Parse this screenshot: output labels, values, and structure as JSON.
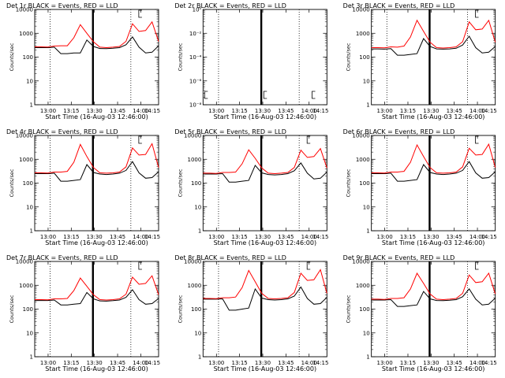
{
  "chart_data": [
    {
      "type": "line",
      "title": "Det 1r BLACK = Events, RED = LLD",
      "xlabel": "Start Time (16-Aug-03 12:46:00)",
      "ylabel": "Counts/sec",
      "yscale": "log",
      "ylim": [
        1,
        10000
      ],
      "yticks": [
        "1",
        "10",
        "100",
        "1000",
        "10000"
      ],
      "xticks": [
        "13:00",
        "13:15",
        "13:30",
        "13:45",
        "14:00",
        "14:15"
      ],
      "series": [
        {
          "color": "#000000",
          "values": [
            250,
            250,
            250,
            260,
            140,
            140,
            150,
            150,
            520,
            280,
            230,
            225,
            235,
            250,
            330,
            700,
            260,
            150,
            160,
            300
          ]
        },
        {
          "color": "#ff0000",
          "values": [
            270,
            270,
            265,
            290,
            300,
            300,
            650,
            2300,
            1000,
            440,
            260,
            250,
            260,
            280,
            460,
            2500,
            1200,
            1300,
            3000,
            450
          ]
        }
      ]
    },
    {
      "type": "line",
      "title": "Det 2r BLACK = Events, RED = LLD",
      "xlabel": "Start Time (16-Aug-03 12:46:00)",
      "ylabel": "Counts/sec",
      "yscale": "log",
      "ylim": [
        1e-08,
        1
      ],
      "yticks": [
        "10⁻⁸",
        "10⁻⁶",
        "10⁻⁴",
        "10⁻²",
        "10⁰"
      ],
      "xticks": [
        "13:00",
        "13:15",
        "13:30",
        "13:45",
        "14:00",
        "14:15"
      ],
      "series": []
    },
    {
      "type": "line",
      "title": "Det 3r BLACK = Events, RED = LLD",
      "xlabel": "Start Time (16-Aug-03 12:46:00)",
      "ylabel": "Counts/sec",
      "yscale": "log",
      "ylim": [
        1,
        10000
      ],
      "yticks": [
        "1",
        "10",
        "100",
        "1000",
        "10000"
      ],
      "xticks": [
        "13:00",
        "13:15",
        "13:30",
        "13:45",
        "14:00",
        "14:15"
      ],
      "series": [
        {
          "color": "#000000",
          "values": [
            220,
            220,
            215,
            225,
            120,
            120,
            130,
            140,
            600,
            280,
            220,
            215,
            220,
            235,
            320,
            750,
            250,
            150,
            160,
            280
          ]
        },
        {
          "color": "#ff0000",
          "values": [
            250,
            250,
            245,
            270,
            260,
            290,
            700,
            3500,
            1200,
            420,
            250,
            240,
            250,
            270,
            440,
            3000,
            1400,
            1500,
            3500,
            420
          ]
        }
      ]
    },
    {
      "type": "line",
      "title": "Det 4r BLACK = Events, RED = LLD",
      "xlabel": "Start Time (16-Aug-03 12:46:00)",
      "ylabel": "Counts/sec",
      "yscale": "log",
      "ylim": [
        1,
        10000
      ],
      "yticks": [
        "1",
        "10",
        "100",
        "1000",
        "10000"
      ],
      "xticks": [
        "13:00",
        "13:15",
        "13:30",
        "13:45",
        "14:00",
        "14:15"
      ],
      "series": [
        {
          "color": "#000000",
          "values": [
            250,
            250,
            250,
            260,
            120,
            120,
            130,
            140,
            600,
            280,
            240,
            230,
            240,
            260,
            340,
            800,
            270,
            160,
            170,
            300
          ]
        },
        {
          "color": "#ff0000",
          "values": [
            270,
            270,
            265,
            290,
            290,
            310,
            750,
            4200,
            1300,
            450,
            270,
            260,
            270,
            290,
            480,
            3000,
            1500,
            1600,
            4500,
            450
          ]
        }
      ]
    },
    {
      "type": "line",
      "title": "Det 5r BLACK = Events, RED = LLD",
      "xlabel": "Start Time (16-Aug-03 12:46:00)",
      "ylabel": "Counts/sec",
      "yscale": "log",
      "ylim": [
        1,
        10000
      ],
      "yticks": [
        "1",
        "10",
        "100",
        "1000",
        "10000"
      ],
      "xticks": [
        "13:00",
        "13:15",
        "13:30",
        "13:45",
        "14:00",
        "14:15"
      ],
      "series": [
        {
          "color": "#000000",
          "values": [
            240,
            240,
            240,
            250,
            110,
            110,
            120,
            130,
            550,
            270,
            230,
            220,
            230,
            250,
            330,
            700,
            260,
            150,
            160,
            290
          ]
        },
        {
          "color": "#ff0000",
          "values": [
            260,
            260,
            255,
            280,
            280,
            290,
            650,
            2500,
            1100,
            430,
            260,
            250,
            260,
            280,
            450,
            2400,
            1200,
            1300,
            2800,
            430
          ]
        }
      ]
    },
    {
      "type": "line",
      "title": "Det 6r BLACK = Events, RED = LLD",
      "xlabel": "Start Time (16-Aug-03 12:46:00)",
      "ylabel": "Counts/sec",
      "yscale": "log",
      "ylim": [
        1,
        10000
      ],
      "yticks": [
        "1",
        "10",
        "100",
        "1000",
        "10000"
      ],
      "xticks": [
        "13:00",
        "13:15",
        "13:30",
        "13:45",
        "14:00",
        "14:15"
      ],
      "series": [
        {
          "color": "#000000",
          "values": [
            250,
            250,
            250,
            260,
            120,
            120,
            130,
            140,
            600,
            280,
            240,
            230,
            240,
            260,
            340,
            800,
            270,
            160,
            170,
            300
          ]
        },
        {
          "color": "#ff0000",
          "values": [
            270,
            270,
            265,
            290,
            290,
            310,
            750,
            4000,
            1300,
            450,
            270,
            260,
            270,
            290,
            480,
            2900,
            1500,
            1600,
            4300,
            450
          ]
        }
      ]
    },
    {
      "type": "line",
      "title": "Det 7r BLACK = Events, RED = LLD",
      "xlabel": "Start Time (16-Aug-03 12:46:00)",
      "ylabel": "Counts/sec",
      "yscale": "log",
      "ylim": [
        1,
        10000
      ],
      "yticks": [
        "1",
        "10",
        "100",
        "1000",
        "10000"
      ],
      "xticks": [
        "13:00",
        "13:15",
        "13:30",
        "13:45",
        "14:00",
        "14:15"
      ],
      "series": [
        {
          "color": "#000000",
          "values": [
            230,
            230,
            230,
            240,
            150,
            150,
            160,
            170,
            500,
            270,
            220,
            215,
            225,
            240,
            310,
            650,
            250,
            160,
            170,
            280
          ]
        },
        {
          "color": "#ff0000",
          "values": [
            250,
            250,
            245,
            270,
            270,
            280,
            600,
            2000,
            900,
            400,
            250,
            240,
            250,
            270,
            420,
            2200,
            1100,
            1200,
            2500,
            400
          ]
        }
      ]
    },
    {
      "type": "line",
      "title": "Det 8r BLACK = Events, RED = LLD",
      "xlabel": "Start Time (16-Aug-03 12:46:00)",
      "ylabel": "Counts/sec",
      "yscale": "log",
      "ylim": [
        1,
        10000
      ],
      "yticks": [
        "1",
        "10",
        "100",
        "1000",
        "10000"
      ],
      "xticks": [
        "13:00",
        "13:15",
        "13:30",
        "13:45",
        "14:00",
        "14:15"
      ],
      "series": [
        {
          "color": "#000000",
          "values": [
            260,
            260,
            260,
            270,
            90,
            90,
            100,
            110,
            700,
            290,
            250,
            240,
            250,
            270,
            350,
            850,
            280,
            160,
            170,
            310
          ]
        },
        {
          "color": "#ff0000",
          "values": [
            280,
            280,
            275,
            300,
            300,
            320,
            800,
            4200,
            1400,
            460,
            280,
            270,
            280,
            300,
            500,
            3200,
            1600,
            1700,
            4500,
            460
          ]
        }
      ]
    },
    {
      "type": "line",
      "title": "Det 9r BLACK = Events, RED = LLD",
      "xlabel": "Start Time (16-Aug-03 12:46:00)",
      "ylabel": "Counts/sec",
      "yscale": "log",
      "ylim": [
        1,
        10000
      ],
      "yticks": [
        "1",
        "10",
        "100",
        "1000",
        "10000"
      ],
      "xticks": [
        "13:00",
        "13:15",
        "13:30",
        "13:45",
        "14:00",
        "14:15"
      ],
      "series": [
        {
          "color": "#000000",
          "values": [
            240,
            240,
            240,
            250,
            130,
            130,
            140,
            150,
            550,
            270,
            230,
            225,
            235,
            250,
            330,
            700,
            260,
            150,
            160,
            290
          ]
        },
        {
          "color": "#ff0000",
          "values": [
            260,
            260,
            255,
            280,
            280,
            300,
            700,
            3200,
            1200,
            430,
            260,
            250,
            260,
            280,
            460,
            2700,
            1300,
            1400,
            3200,
            430
          ]
        }
      ]
    }
  ]
}
